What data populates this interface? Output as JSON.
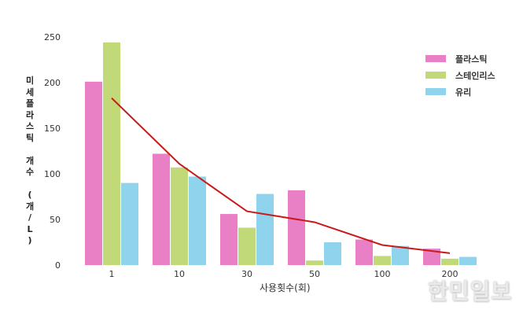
{
  "chart_data": {
    "type": "bar",
    "title": "",
    "xlabel": "사용횟수(회)",
    "ylabel": "미세플라스틱 개수 (개/L)",
    "ylim": [
      0,
      250
    ],
    "yticks": [
      0,
      50,
      100,
      150,
      200,
      250
    ],
    "grid": false,
    "legend_position": "top-right",
    "categories": [
      "1",
      "10",
      "30",
      "50",
      "100",
      "200"
    ],
    "series": [
      {
        "name": "플라스틱",
        "color": "#e97fc4",
        "values": [
          201,
          122,
          56,
          82,
          28,
          18
        ]
      },
      {
        "name": "스테인리스",
        "color": "#c2d97a",
        "values": [
          244,
          107,
          41,
          5,
          10,
          7
        ]
      },
      {
        "name": "유리",
        "color": "#8fd3ec",
        "values": [
          90,
          97,
          78,
          25,
          21,
          9
        ]
      }
    ],
    "trend_line": {
      "type": "line",
      "color": "#c81a1a",
      "values": [
        183,
        111,
        59,
        47,
        22,
        13
      ]
    }
  },
  "ylabel_chars": [
    "미",
    "세",
    "플",
    "라",
    "스",
    "틱",
    " ",
    "개",
    "수",
    " ",
    "(",
    "개",
    "/",
    "L",
    ")"
  ],
  "watermark": "한민일보"
}
